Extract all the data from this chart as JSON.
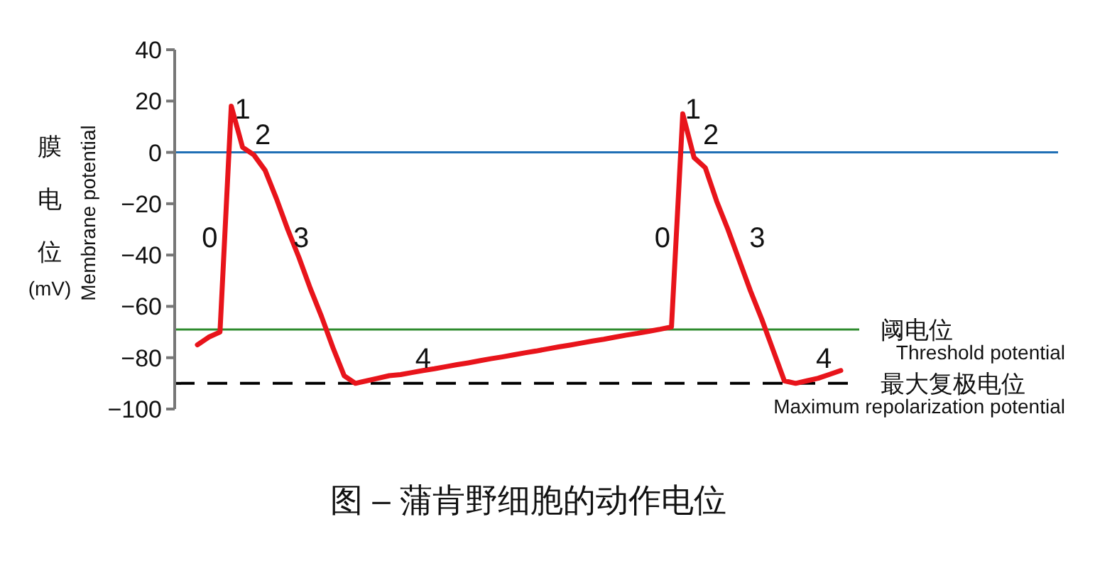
{
  "chart_data": {
    "type": "line",
    "title": "图 – 蒲肯野细胞的动作电位",
    "ylabel": "膜电位(mV)",
    "categories": [
      null,
      null,
      null,
      null,
      null,
      null,
      null,
      null,
      null,
      null,
      null,
      null,
      null,
      null,
      null,
      null,
      null,
      null,
      null,
      null,
      null,
      null,
      null,
      null,
      null,
      null,
      null,
      null,
      null,
      null,
      null,
      null,
      null,
      null,
      null,
      null,
      null,
      null,
      null,
      null,
      null,
      null,
      null,
      null,
      null,
      null,
      null,
      null,
      null,
      null,
      null,
      null,
      null,
      null,
      null,
      null,
      null,
      null
    ],
    "series": [
      {
        "color": "#e8141b",
        "values": [
          -75,
          -72,
          -70,
          18,
          2,
          -1,
          -7,
          -18,
          -30,
          -41,
          -53,
          -64,
          -76,
          -87,
          -90,
          -89,
          -88,
          -87,
          -86.6,
          -85.8,
          -85,
          -84.3,
          -83.5,
          -82.7,
          -82,
          -81.2,
          -80.4,
          -79.7,
          -78.9,
          -78.1,
          -77.4,
          -76.6,
          -75.8,
          -75.1,
          -74.3,
          -73.5,
          -72.8,
          -72,
          -71.2,
          -70.5,
          -69.7,
          -68.9,
          -68,
          15,
          -2,
          -6,
          -19,
          -30,
          -42,
          -54,
          -65,
          -77,
          -89,
          -90,
          -89,
          -88,
          -86.5,
          -85
        ]
      }
    ],
    "ylim": [
      -100,
      40
    ],
    "yticks": [
      -100,
      -80,
      -60,
      -40,
      -20,
      0,
      20,
      40
    ],
    "line_style": "solid",
    "marker": "none",
    "ref_lines": [
      {
        "axis": "y",
        "value": 0,
        "color": "#1f6fb5",
        "line_style": "solid"
      },
      {
        "axis": "y",
        "value": -69,
        "color": "#2e8b2e",
        "line_style": "solid",
        "label": "阈电位\nThreshold potential"
      },
      {
        "axis": "y",
        "value": -90,
        "color": "#000000",
        "line_style": "dashed",
        "label": "最大复极电位\nMaximum repolarization potential"
      }
    ],
    "annotations": [
      "Membrane potential",
      "0",
      "1",
      "2",
      "3",
      "4",
      "0",
      "1",
      "2",
      "3",
      "4"
    ]
  }
}
